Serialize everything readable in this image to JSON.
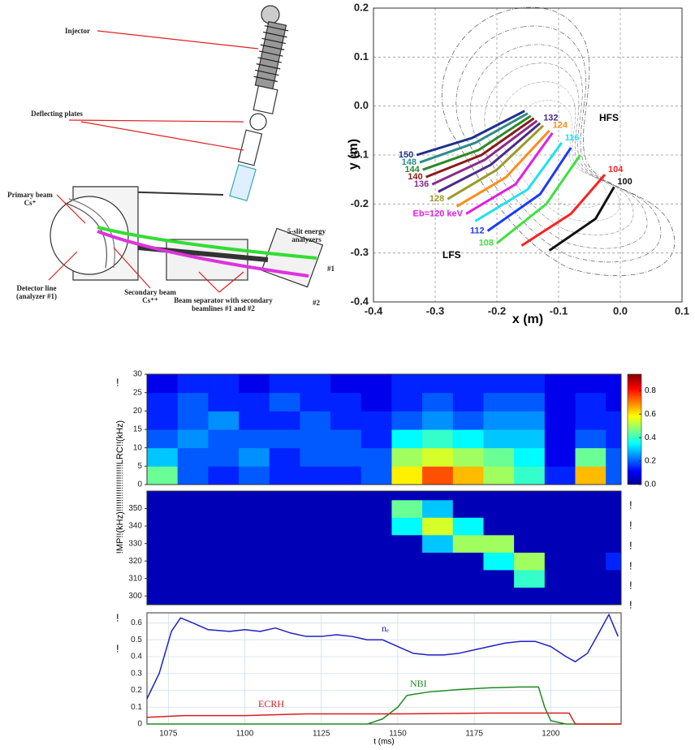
{
  "diagram": {
    "labels": [
      "Injector",
      "Deflecting plates",
      "Primary beam Cs⁺",
      "Detector line (analyzer #1)",
      "Secondary beam Cs⁺⁺",
      "Beam separator with secondary beamlines #1 and #2",
      "5-slit energy analyzers",
      "#1",
      "#2"
    ]
  },
  "margin_marks": [
    "!",
    "!",
    "!",
    "!",
    "!",
    "!",
    "!",
    "!",
    "!"
  ],
  "chart_data": [
    {
      "type": "line",
      "xlabel": "x (m)",
      "ylabel": "y (m)",
      "xlim": [
        -0.4,
        0.1
      ],
      "ylim": [
        -0.4,
        0.2
      ],
      "xticks": [
        -0.4,
        -0.3,
        -0.2,
        -0.1,
        {
          "value": 0,
          "label": "0.0"
        },
        0.1
      ],
      "yticks": [
        -0.4,
        -0.3,
        -0.2,
        -0.1,
        {
          "value": 0,
          "label": "0.0"
        },
        0.1,
        0.2
      ],
      "grid": true,
      "annotations": [
        "HFS",
        "LFS"
      ],
      "series": [
        {
          "name": "100",
          "color": "#111111",
          "x": [
            -0.115,
            -0.04,
            -0.01
          ],
          "values": [
            -0.295,
            -0.23,
            -0.165
          ]
        },
        {
          "name": "104",
          "color": "#ff2020",
          "x": [
            -0.16,
            -0.08,
            -0.025
          ],
          "values": [
            -0.285,
            -0.22,
            -0.14
          ]
        },
        {
          "name": "108",
          "color": "#40e040",
          "x": [
            -0.2,
            -0.12,
            -0.065
          ],
          "values": [
            -0.28,
            -0.2,
            -0.1
          ]
        },
        {
          "name": "112",
          "color": "#1a3aff",
          "x": [
            -0.215,
            -0.13,
            -0.08
          ],
          "values": [
            -0.255,
            -0.18,
            -0.085
          ]
        },
        {
          "name": "116",
          "color": "#20e0f0",
          "x": [
            -0.235,
            -0.15,
            -0.095
          ],
          "values": [
            -0.235,
            -0.17,
            -0.075
          ]
        },
        {
          "name": "Eb=120 keV",
          "color": "#e020e0",
          "x": [
            -0.25,
            -0.17,
            -0.11
          ],
          "values": [
            -0.22,
            -0.16,
            -0.055
          ]
        },
        {
          "name": "124",
          "color": "#ff8c1a",
          "x": [
            -0.265,
            -0.185,
            -0.115
          ],
          "values": [
            -0.205,
            -0.145,
            -0.05
          ]
        },
        {
          "name": "128",
          "color": "#9a9a2a",
          "x": [
            -0.28,
            -0.2,
            -0.125
          ],
          "values": [
            -0.19,
            -0.13,
            -0.04
          ]
        },
        {
          "name": "132",
          "color": "#4b2a8b",
          "x": [
            -0.295,
            -0.21,
            -0.13
          ],
          "values": [
            -0.175,
            -0.12,
            -0.035
          ]
        },
        {
          "name": "136",
          "color": "#8b2a8b",
          "x": [
            -0.305,
            -0.22,
            -0.135
          ],
          "values": [
            -0.16,
            -0.11,
            -0.03
          ]
        },
        {
          "name": "140",
          "color": "#8b1a1a",
          "x": [
            -0.315,
            -0.225,
            -0.14
          ],
          "values": [
            -0.145,
            -0.1,
            -0.025
          ]
        },
        {
          "name": "144",
          "color": "#2a8a2a",
          "x": [
            -0.32,
            -0.23,
            -0.145
          ],
          "values": [
            -0.13,
            -0.09,
            -0.02
          ]
        },
        {
          "name": "148",
          "color": "#2e8b8b",
          "x": [
            -0.325,
            -0.235,
            -0.15
          ],
          "values": [
            -0.115,
            -0.075,
            -0.015
          ]
        },
        {
          "name": "150",
          "color": "#1f2f8f",
          "x": [
            -0.33,
            -0.24,
            -0.155
          ],
          "values": [
            -0.1,
            -0.065,
            -0.01
          ]
        }
      ]
    },
    {
      "type": "heatmap",
      "ylabel": "!MP!!(kHz)!!!!!!!!!!!!!!!!!!!LRC!!(kHz)",
      "xlim": [
        1068,
        1223
      ],
      "ylim": [
        0,
        30
      ],
      "yticks": [
        0,
        5,
        10,
        15,
        20,
        25,
        30
      ],
      "zlim": [
        0,
        0.94
      ],
      "colorbar_ticks": [
        {
          "value": 0,
          "label": "0.0"
        },
        0.2,
        0.4,
        0.6,
        0.8
      ],
      "x_bins": [
        1068,
        1078,
        1088,
        1098,
        1108,
        1118,
        1128,
        1138,
        1148,
        1158,
        1168,
        1178,
        1188,
        1198,
        1208,
        1218,
        1223
      ],
      "y_bins": [
        0,
        5,
        10,
        15,
        20,
        25,
        30
      ],
      "z": [
        [
          0.45,
          0.2,
          0.15,
          0.2,
          0.15,
          0.15,
          0.15,
          0.2,
          0.6,
          0.75,
          0.65,
          0.5,
          0.4,
          0.15,
          0.65,
          0.2
        ],
        [
          0.3,
          0.2,
          0.2,
          0.25,
          0.15,
          0.2,
          0.2,
          0.2,
          0.5,
          0.55,
          0.5,
          0.45,
          0.35,
          0.1,
          0.45,
          0.2
        ],
        [
          0.2,
          0.25,
          0.2,
          0.2,
          0.2,
          0.2,
          0.2,
          0.15,
          0.35,
          0.4,
          0.35,
          0.3,
          0.3,
          0.1,
          0.2,
          0.15
        ],
        [
          0.15,
          0.2,
          0.25,
          0.15,
          0.15,
          0.2,
          0.15,
          0.15,
          0.2,
          0.25,
          0.2,
          0.25,
          0.25,
          0.1,
          0.15,
          0.15
        ],
        [
          0.15,
          0.2,
          0.15,
          0.15,
          0.2,
          0.15,
          0.15,
          0.1,
          0.15,
          0.2,
          0.15,
          0.2,
          0.2,
          0.1,
          0.15,
          0.1
        ],
        [
          0.1,
          0.15,
          0.15,
          0.1,
          0.15,
          0.15,
          0.1,
          0.1,
          0.15,
          0.15,
          0.15,
          0.15,
          0.15,
          0.1,
          0.1,
          0.1
        ]
      ]
    },
    {
      "type": "heatmap",
      "xlim": [
        1068,
        1223
      ],
      "ylim": [
        295,
        360
      ],
      "yticks": [
        300,
        310,
        320,
        330,
        340,
        350
      ],
      "zlim": [
        0,
        0.94
      ],
      "x_bins": [
        1068,
        1078,
        1088,
        1098,
        1108,
        1118,
        1128,
        1138,
        1148,
        1158,
        1168,
        1178,
        1188,
        1198,
        1208,
        1218,
        1223
      ],
      "y_bins": [
        295,
        305,
        315,
        325,
        335,
        345,
        355,
        360
      ],
      "z": [
        [
          0.05,
          0.05,
          0.05,
          0.05,
          0.05,
          0.05,
          0.05,
          0.05,
          0.05,
          0.05,
          0.05,
          0.05,
          0.05,
          0.05,
          0.05,
          0.05
        ],
        [
          0.05,
          0.05,
          0.05,
          0.05,
          0.05,
          0.05,
          0.05,
          0.05,
          0.05,
          0.05,
          0.05,
          0.05,
          0.4,
          0.05,
          0.05,
          0.05
        ],
        [
          0.05,
          0.05,
          0.05,
          0.05,
          0.05,
          0.05,
          0.05,
          0.05,
          0.05,
          0.05,
          0.05,
          0.35,
          0.5,
          0.05,
          0.05,
          0.15
        ],
        [
          0.05,
          0.05,
          0.05,
          0.05,
          0.05,
          0.05,
          0.05,
          0.05,
          0.05,
          0.3,
          0.5,
          0.5,
          0.05,
          0.05,
          0.05,
          0.05
        ],
        [
          0.05,
          0.05,
          0.05,
          0.05,
          0.05,
          0.05,
          0.05,
          0.05,
          0.35,
          0.55,
          0.35,
          0.05,
          0.05,
          0.05,
          0.05,
          0.05
        ],
        [
          0.05,
          0.05,
          0.05,
          0.05,
          0.05,
          0.05,
          0.05,
          0.05,
          0.45,
          0.3,
          0.05,
          0.05,
          0.05,
          0.05,
          0.05,
          0.05
        ],
        [
          0.05,
          0.05,
          0.05,
          0.05,
          0.05,
          0.05,
          0.05,
          0.05,
          0.05,
          0.05,
          0.05,
          0.05,
          0.05,
          0.05,
          0.05,
          0.05
        ]
      ]
    },
    {
      "type": "line",
      "xlabel": "t (ms)",
      "xlim": [
        1068,
        1223
      ],
      "ylim": [
        0,
        0.66
      ],
      "xticks": [
        1075,
        1100,
        1125,
        1150,
        1175,
        1200
      ],
      "yticks": [
        0,
        0.1,
        0.2,
        0.3,
        0.4,
        0.5,
        0.6
      ],
      "grid": true,
      "series": [
        {
          "name": "nₑ",
          "color": "#2020c0",
          "x": [
            1068,
            1072,
            1076,
            1079,
            1083,
            1088,
            1095,
            1100,
            1105,
            1110,
            1115,
            1120,
            1125,
            1130,
            1135,
            1140,
            1145,
            1150,
            1155,
            1160,
            1165,
            1170,
            1175,
            1180,
            1185,
            1190,
            1195,
            1200,
            1205,
            1208,
            1212,
            1216,
            1219,
            1222
          ],
          "values": [
            0.15,
            0.3,
            0.55,
            0.63,
            0.6,
            0.56,
            0.55,
            0.56,
            0.55,
            0.57,
            0.54,
            0.52,
            0.52,
            0.53,
            0.52,
            0.5,
            0.5,
            0.46,
            0.42,
            0.41,
            0.41,
            0.42,
            0.44,
            0.46,
            0.48,
            0.49,
            0.49,
            0.46,
            0.4,
            0.37,
            0.42,
            0.55,
            0.65,
            0.52
          ]
        },
        {
          "name": "NBI",
          "color": "#1e8a1e",
          "x": [
            1068,
            1140,
            1145,
            1150,
            1153,
            1160,
            1170,
            1180,
            1190,
            1196,
            1198,
            1200,
            1205,
            1223
          ],
          "values": [
            0,
            0,
            0.03,
            0.1,
            0.17,
            0.19,
            0.205,
            0.215,
            0.22,
            0.22,
            0.1,
            0.02,
            0,
            0
          ]
        },
        {
          "name": "ECRH",
          "color": "#d81e1e",
          "x": [
            1068,
            1080,
            1100,
            1120,
            1150,
            1180,
            1206,
            1208,
            1223
          ],
          "values": [
            0.04,
            0.05,
            0.05,
            0.06,
            0.06,
            0.065,
            0.065,
            0,
            0
          ]
        }
      ]
    }
  ]
}
